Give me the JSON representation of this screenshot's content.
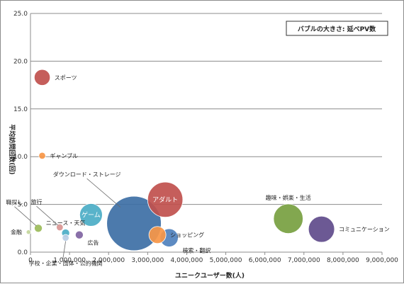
{
  "chart_data": {
    "type": "bubble",
    "legend_note": "バブルの大きさ: 延べPV数",
    "xlabel": "ユニークユーザー数(人)",
    "ylabel": "平均訪問回数(回)",
    "xlim": [
      0,
      9000000
    ],
    "ylim": [
      0,
      25
    ],
    "x_ticks": [
      "0",
      "1,000,000",
      "2,000,000",
      "3,000,000",
      "4,000,000",
      "5,000,000",
      "6,000,000",
      "7,000,000",
      "8,000,000",
      "9,000,000"
    ],
    "y_ticks": [
      "0.0",
      "5.0",
      "10.0",
      "15.0",
      "20.0",
      "25.0"
    ],
    "grid": "horizontal",
    "points": [
      {
        "name": "スポーツ",
        "x": 300000,
        "y": 18.3,
        "size": 14,
        "color": "#c0504d",
        "label_pos": "right"
      },
      {
        "name": "ギャンブル",
        "x": 300000,
        "y": 10.1,
        "size": 6,
        "color": "#f79646",
        "label_pos": "right"
      },
      {
        "name": "ダウンロード・ストレージ",
        "x": 2650000,
        "y": 3.0,
        "size": 48,
        "color": "#3d6fa5",
        "label_pos": "above-left"
      },
      {
        "name": "アダルト",
        "x": 3450000,
        "y": 5.5,
        "size": 31,
        "color": "#c0504d",
        "label_pos": "inside"
      },
      {
        "name": "ショッピング",
        "x": 3250000,
        "y": 1.8,
        "size": 15,
        "color": "#f79646",
        "label_pos": "right"
      },
      {
        "name": "検索・翻訳",
        "x": 3550000,
        "y": 1.5,
        "size": 16,
        "color": "#4f81bd",
        "label_pos": "below-right"
      },
      {
        "name": "ゲーム",
        "x": 1550000,
        "y": 3.9,
        "size": 20,
        "color": "#4bacc6",
        "label_pos": "inside"
      },
      {
        "name": "ニュース・天気",
        "x": 900000,
        "y": 2.0,
        "size": 7,
        "color": "#4bacc6",
        "label_pos": "above"
      },
      {
        "name": "旅行",
        "x": 750000,
        "y": 2.6,
        "size": 6,
        "color": "#d99694",
        "label_pos": "above-left"
      },
      {
        "name": "職探し",
        "x": 200000,
        "y": 2.5,
        "size": 7,
        "color": "#9bbb59",
        "label_pos": "above-left"
      },
      {
        "name": "金融",
        "x": -50000,
        "y": 2.1,
        "size": 4,
        "color": "#c3d69b",
        "label_pos": "left"
      },
      {
        "name": "広告",
        "x": 1250000,
        "y": 1.8,
        "size": 7,
        "color": "#8064a2",
        "label_pos": "below-right"
      },
      {
        "name": "学校・企業・団体・公的機関",
        "x": 900000,
        "y": 1.5,
        "size": 6,
        "color": "#b9cde5",
        "label_pos": "below"
      },
      {
        "name": "趣味・娯楽・生活",
        "x": 6600000,
        "y": 3.5,
        "size": 26,
        "color": "#77a040",
        "label_pos": "above"
      },
      {
        "name": "コミュニケーション",
        "x": 7450000,
        "y": 2.4,
        "size": 23,
        "color": "#5f4b8b",
        "label_pos": "right"
      }
    ]
  }
}
